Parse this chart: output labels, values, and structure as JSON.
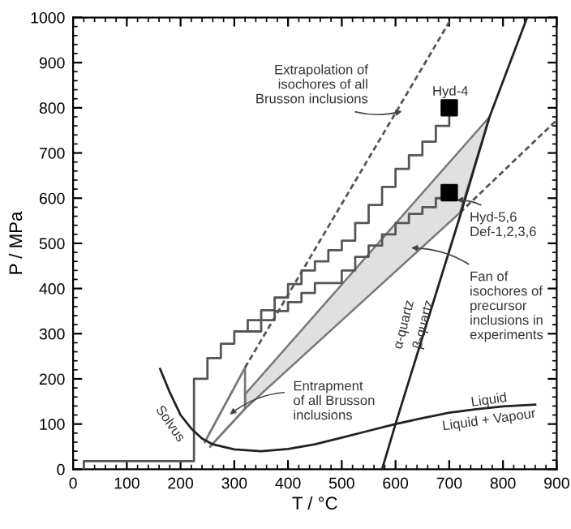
{
  "chart_data": {
    "type": "line",
    "xlabel": "T / °C",
    "ylabel": "P / MPa",
    "xlim": [
      0,
      900
    ],
    "ylim": [
      0,
      1000
    ],
    "xticks": [
      0,
      100,
      200,
      300,
      400,
      500,
      600,
      700,
      800,
      900
    ],
    "yticks": [
      0,
      100,
      200,
      300,
      400,
      500,
      600,
      700,
      800,
      900,
      1000
    ],
    "series": [
      {
        "type": "step",
        "color": "#555555",
        "x": [
          20,
          20,
          225,
          250,
          275,
          300,
          325,
          350,
          375,
          400,
          425,
          450,
          475,
          500,
          525,
          550,
          575,
          600,
          625,
          650,
          675,
          700
        ],
        "values": [
          0,
          18,
          200,
          246,
          278,
          305,
          330,
          352,
          380,
          410,
          440,
          460,
          485,
          506,
          545,
          585,
          625,
          665,
          695,
          725,
          760,
          800
        ]
      },
      {
        "type": "step",
        "color": "#555555",
        "x": [
          325,
          350,
          375,
          400,
          425,
          450,
          500,
          525,
          550,
          575,
          600,
          625,
          650,
          675,
          700
        ],
        "values": [
          305,
          330,
          350,
          370,
          390,
          412,
          440,
          470,
          495,
          520,
          545,
          565,
          580,
          600,
          612
        ]
      },
      {
        "type": "area",
        "color": "#e0e0e0",
        "x": [
          320,
          320,
          775,
          720
        ],
        "values": [
          134,
          166,
          780,
          568
        ]
      },
      {
        "color": "#777777",
        "x": [
          245,
          320,
          320,
          255
        ],
        "values": [
          60,
          225,
          134,
          50
        ]
      },
      {
        "color": "#555555",
        "line_style": "dashed",
        "x": [
          320,
          705
        ],
        "values": [
          225,
          1000
        ]
      },
      {
        "color": "#555555",
        "line_style": "dashed",
        "x": [
          720,
          900
        ],
        "values": [
          568,
          773
        ]
      },
      {
        "color": "#222222",
        "x": [
          575,
          600,
          720,
          775,
          845
        ],
        "values": [
          0,
          100,
          560,
          780,
          1000
        ]
      },
      {
        "color": "#222222",
        "x": [
          162,
          180,
          200,
          220,
          240,
          260,
          300,
          350,
          400,
          450,
          500,
          550,
          600,
          650,
          700,
          750,
          800,
          860
        ],
        "values": [
          222,
          170,
          120,
          90,
          68,
          55,
          44,
          40,
          45,
          55,
          70,
          85,
          100,
          113,
          125,
          133,
          139,
          143
        ]
      },
      {
        "type": "scatter",
        "color": "#000000",
        "marker": "square",
        "x": [
          700,
          700
        ],
        "values": [
          800,
          612
        ]
      }
    ],
    "annotations": [
      {
        "text": "Extrapolation of\nisochores of all\nBrusson inclusions",
        "x": 620,
        "y": 795
      },
      "Hyd-4",
      {
        "text": "Hyd-5,6\nDef-1,2,3,6",
        "x": 705,
        "y": 595
      },
      "Fan of\nisochores of\nprecursor\ninclusions in\nexperiments",
      {
        "text": "Entrapment\nof all Brusson\ninclusions",
        "x": 285,
        "y": 115
      },
      "Solvus",
      "α-quartz",
      "β-quartz",
      "Liquid",
      "Liquid + Vapour"
    ]
  }
}
